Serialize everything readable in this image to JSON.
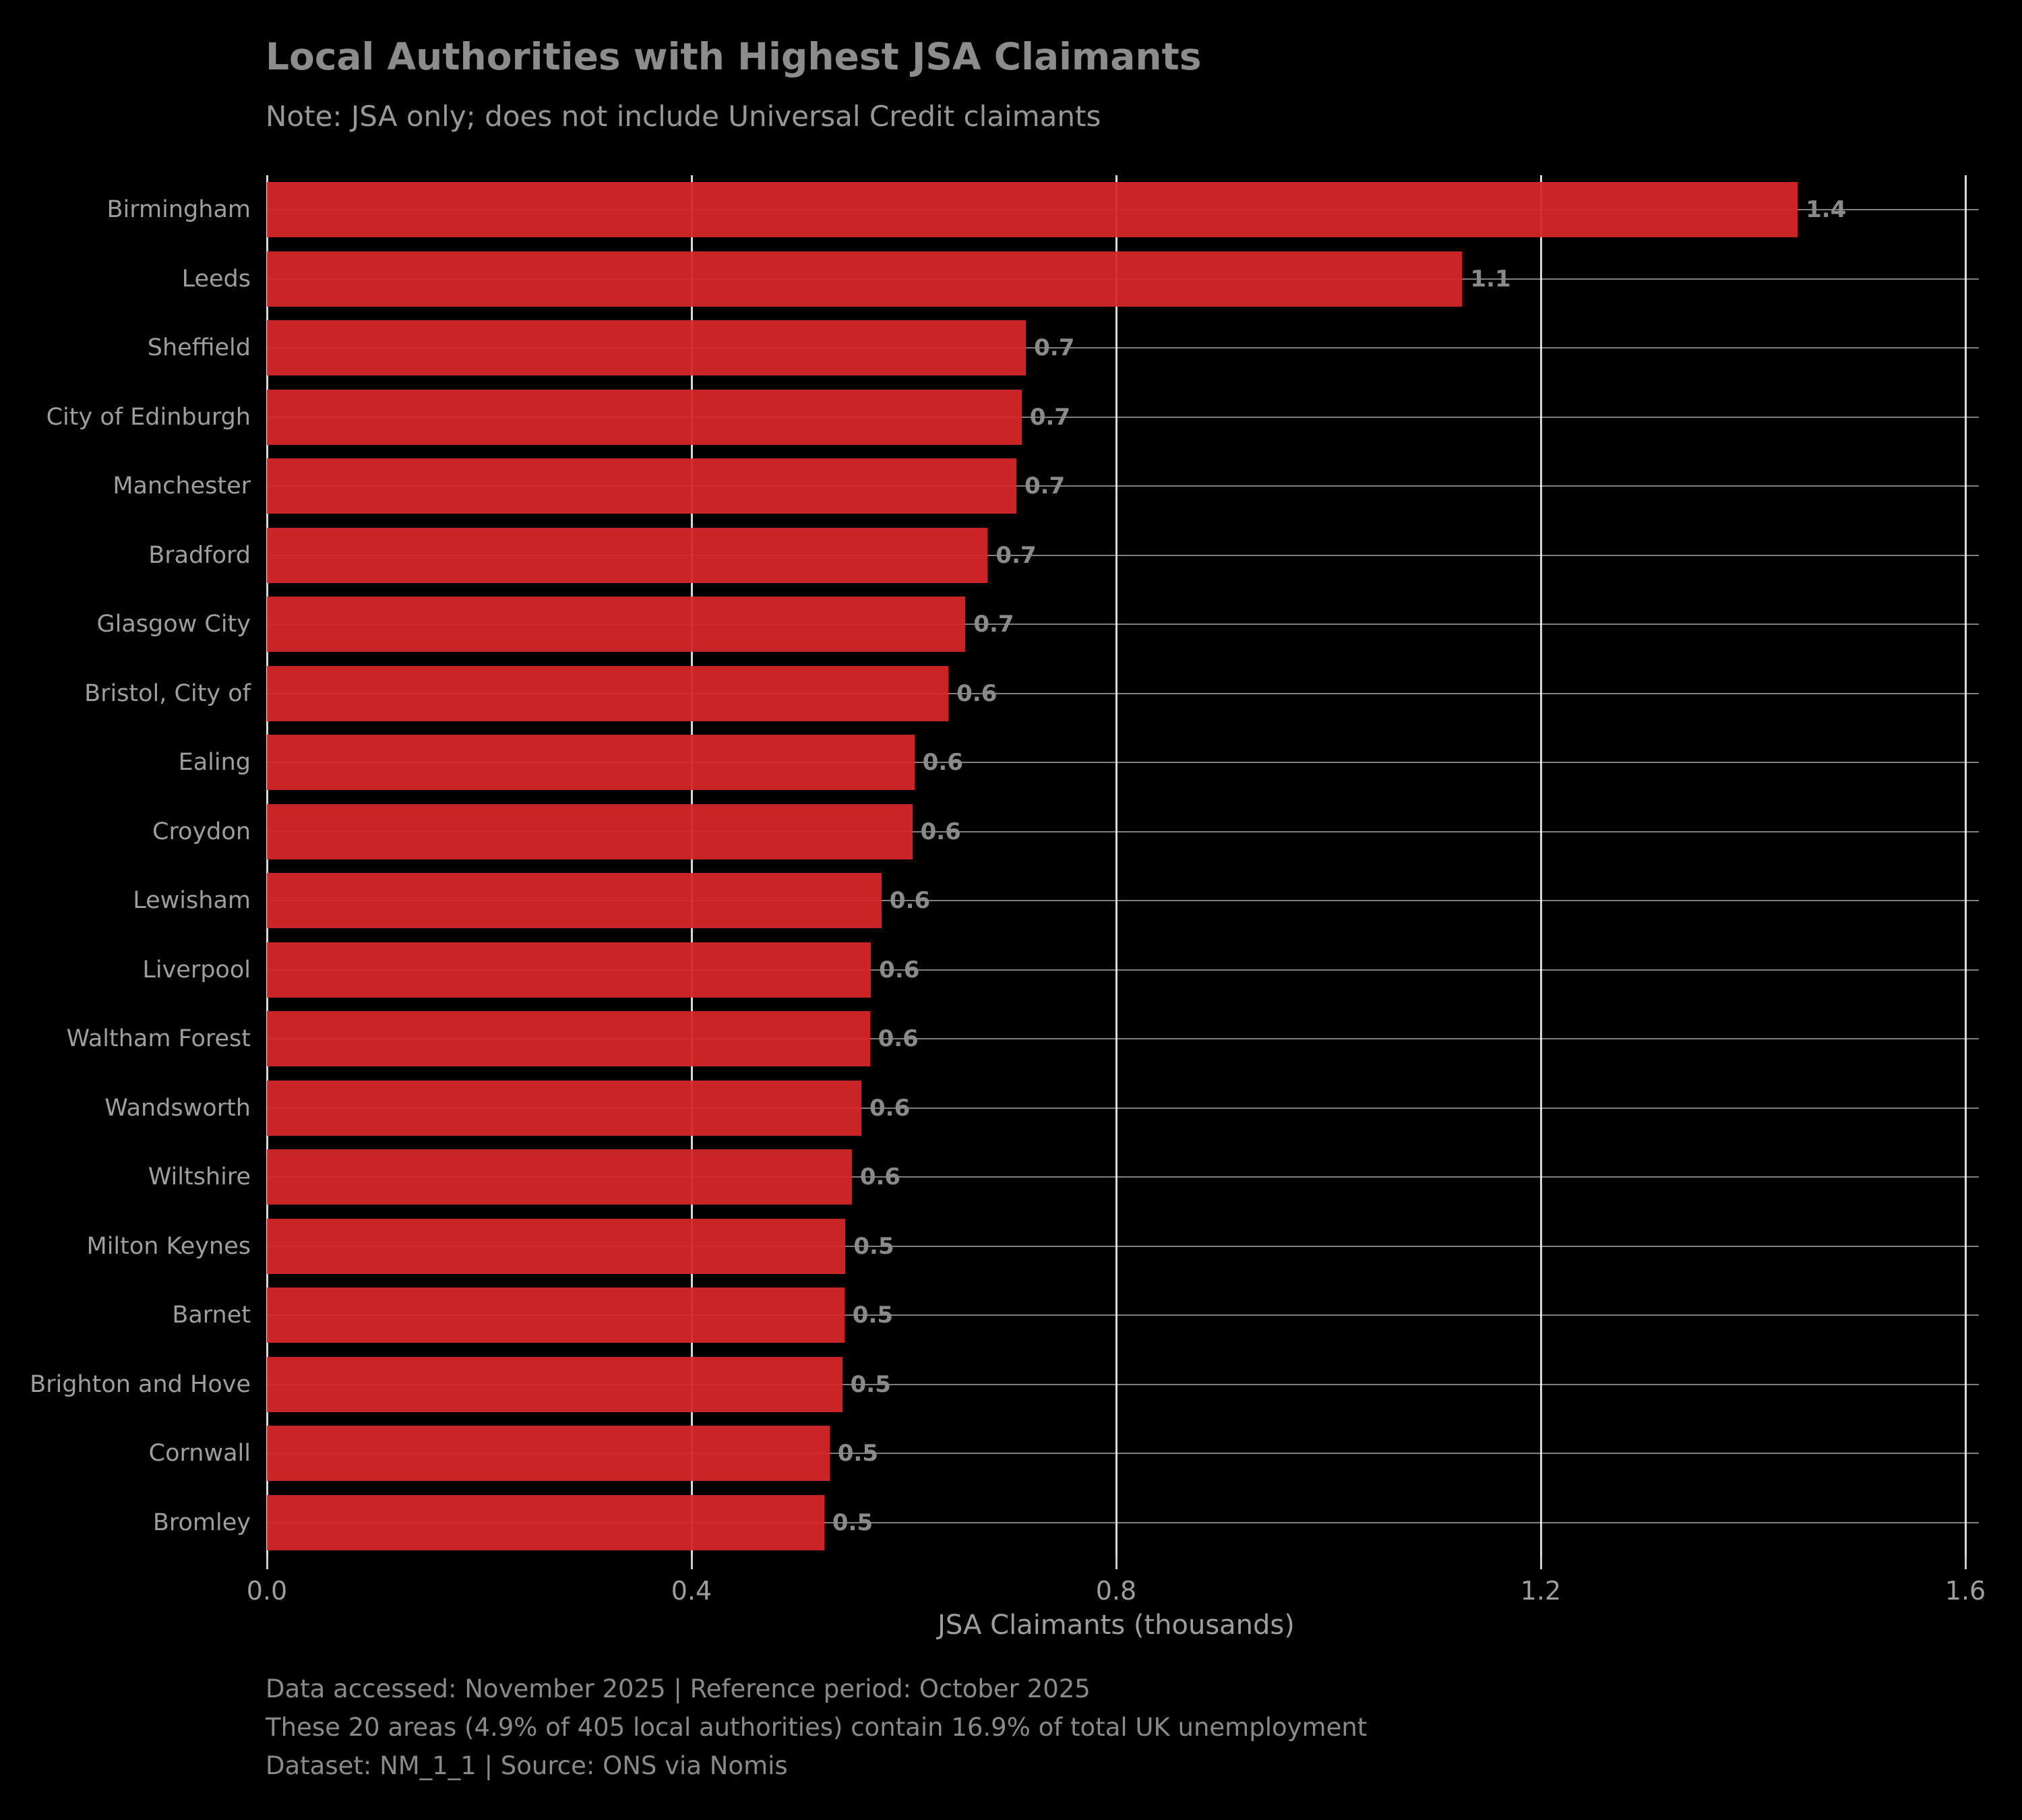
{
  "title": "Local Authorities with Highest JSA Claimants",
  "subtitle": "Note: JSA only; does not include Universal Credit claimants",
  "footer": {
    "line1": "Data accessed: November 2025 | Reference period: October 2025",
    "line2": "These 20 areas (4.9% of 405 local authorities) contain 16.9% of total UK unemployment",
    "line3": "Dataset: NM_1_1 | Source: ONS via Nomis"
  },
  "colors": {
    "background": "#000000",
    "bar": "#d62728",
    "grid": "#ffffff",
    "title_text": "#8c8c8c",
    "axis_text": "#9e9e9e",
    "value_text": "#8a8a8a"
  },
  "chart_data": {
    "type": "bar",
    "orientation": "horizontal",
    "title": "Local Authorities with Highest JSA Claimants",
    "subtitle": "Note: JSA only; does not include Universal Credit claimants",
    "xlabel": "JSA Claimants (thousands)",
    "ylabel": "",
    "xlim": [
      0,
      1.6
    ],
    "x_tick_values": [
      0.0,
      0.4,
      0.8,
      1.2,
      1.6
    ],
    "x_tick_labels": [
      "0.0",
      "0.4",
      "0.8",
      "1.2",
      "1.6"
    ],
    "grid": true,
    "legend": false,
    "categories": [
      "Birmingham",
      "Leeds",
      "Sheffield",
      "City of Edinburgh",
      "Manchester",
      "Bradford",
      "Glasgow City",
      "Bristol, City of",
      "Ealing",
      "Croydon",
      "Lewisham",
      "Liverpool",
      "Waltham Forest",
      "Wandsworth",
      "Wiltshire",
      "Milton Keynes",
      "Barnet",
      "Brighton and Hove",
      "Cornwall",
      "Bromley"
    ],
    "values": [
      1.442,
      1.126,
      0.715,
      0.711,
      0.706,
      0.679,
      0.658,
      0.642,
      0.61,
      0.608,
      0.579,
      0.569,
      0.568,
      0.56,
      0.551,
      0.545,
      0.544,
      0.542,
      0.53,
      0.525
    ],
    "bar_labels": [
      "1.4",
      "1.1",
      "0.7",
      "0.7",
      "0.7",
      "0.7",
      "0.7",
      "0.6",
      "0.6",
      "0.6",
      "0.6",
      "0.6",
      "0.6",
      "0.6",
      "0.6",
      "0.5",
      "0.5",
      "0.5",
      "0.5",
      "0.5"
    ]
  }
}
